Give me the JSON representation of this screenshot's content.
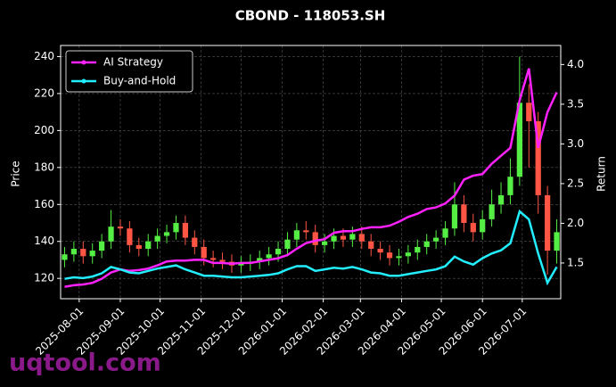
{
  "chart_data": {
    "type": "candlestick",
    "title": "CBOND - 118053.SH",
    "ylabel": "Price",
    "y2label": "Return",
    "watermark": "uqtool.com",
    "x": [
      "2025-07-21",
      "2025-07-28",
      "2025-08-04",
      "2025-08-11",
      "2025-08-18",
      "2025-08-25",
      "2025-09-01",
      "2025-09-08",
      "2025-09-15",
      "2025-09-22",
      "2025-09-29",
      "2025-10-06",
      "2025-10-13",
      "2025-10-20",
      "2025-10-27",
      "2025-11-03",
      "2025-11-10",
      "2025-11-17",
      "2025-11-24",
      "2025-12-01",
      "2025-12-08",
      "2025-12-15",
      "2025-12-22",
      "2025-12-29",
      "2026-01-05",
      "2026-01-12",
      "2026-01-19",
      "2026-01-26",
      "2026-02-02",
      "2026-02-09",
      "2026-02-16",
      "2026-02-23",
      "2026-03-02",
      "2026-03-09",
      "2026-03-16",
      "2026-03-23",
      "2026-03-30",
      "2026-04-06",
      "2026-04-13",
      "2026-04-20",
      "2026-04-27",
      "2026-05-04",
      "2026-05-11",
      "2026-05-18",
      "2026-05-25",
      "2026-06-01",
      "2026-06-08",
      "2026-06-15",
      "2026-06-22",
      "2026-06-29",
      "2026-07-06",
      "2026-07-13",
      "2026-07-20",
      "2026-07-27"
    ],
    "open": [
      130,
      133,
      136,
      132,
      135,
      140,
      148,
      147,
      138,
      136,
      140,
      143,
      145,
      150,
      142,
      137,
      131,
      130,
      129,
      127,
      128,
      129,
      131,
      133,
      136,
      141,
      146,
      145,
      138,
      140,
      143,
      141,
      144,
      140,
      136,
      134,
      131,
      132,
      134,
      137,
      140,
      142,
      147,
      160,
      150,
      145,
      152,
      160,
      165,
      175,
      215,
      205,
      165,
      135
    ],
    "high": [
      137,
      140,
      140,
      139,
      144,
      157,
      152,
      151,
      142,
      144,
      147,
      149,
      154,
      154,
      146,
      141,
      135,
      134,
      133,
      132,
      133,
      135,
      137,
      140,
      145,
      150,
      151,
      149,
      144,
      147,
      147,
      148,
      148,
      144,
      140,
      138,
      136,
      138,
      141,
      144,
      146,
      151,
      172,
      165,
      155,
      157,
      168,
      172,
      185,
      240,
      225,
      210,
      170,
      152
    ],
    "low": [
      126,
      129,
      128,
      128,
      131,
      136,
      143,
      134,
      132,
      132,
      136,
      139,
      141,
      138,
      133,
      127,
      126,
      125,
      123,
      123,
      124,
      125,
      127,
      129,
      132,
      137,
      141,
      134,
      134,
      136,
      137,
      137,
      136,
      132,
      130,
      127,
      127,
      128,
      130,
      133,
      136,
      138,
      143,
      145,
      140,
      141,
      148,
      155,
      160,
      170,
      180,
      155,
      122,
      128
    ],
    "close": [
      133,
      136,
      132,
      135,
      140,
      148,
      147,
      138,
      136,
      140,
      143,
      145,
      150,
      142,
      137,
      131,
      130,
      129,
      127,
      128,
      129,
      131,
      133,
      136,
      141,
      146,
      145,
      138,
      140,
      143,
      141,
      144,
      140,
      136,
      134,
      131,
      132,
      134,
      137,
      140,
      142,
      147,
      160,
      150,
      145,
      152,
      160,
      165,
      175,
      215,
      205,
      165,
      135,
      145
    ],
    "up_color": "#55ee44",
    "down_color": "#ff5544",
    "series": [
      {
        "name": "AI Strategy",
        "color": "#ff22ff",
        "axis": "y2",
        "values": [
          1.2,
          1.22,
          1.23,
          1.25,
          1.3,
          1.38,
          1.42,
          1.4,
          1.41,
          1.43,
          1.47,
          1.52,
          1.53,
          1.53,
          1.54,
          1.54,
          1.5,
          1.5,
          1.49,
          1.5,
          1.5,
          1.52,
          1.54,
          1.56,
          1.6,
          1.68,
          1.75,
          1.78,
          1.8,
          1.88,
          1.9,
          1.9,
          1.93,
          1.95,
          1.95,
          1.97,
          2.02,
          2.08,
          2.12,
          2.18,
          2.2,
          2.25,
          2.35,
          2.55,
          2.6,
          2.62,
          2.75,
          2.85,
          2.95,
          3.55,
          3.95,
          2.95,
          3.4,
          3.65
        ]
      },
      {
        "name": "Buy-and-Hold",
        "color": "#22eeff",
        "axis": "y2",
        "values": [
          1.3,
          1.32,
          1.31,
          1.33,
          1.37,
          1.45,
          1.42,
          1.38,
          1.37,
          1.4,
          1.43,
          1.45,
          1.47,
          1.42,
          1.38,
          1.34,
          1.34,
          1.33,
          1.32,
          1.32,
          1.33,
          1.34,
          1.35,
          1.37,
          1.42,
          1.46,
          1.46,
          1.4,
          1.42,
          1.44,
          1.43,
          1.45,
          1.42,
          1.38,
          1.37,
          1.34,
          1.34,
          1.36,
          1.38,
          1.4,
          1.42,
          1.46,
          1.58,
          1.52,
          1.48,
          1.56,
          1.62,
          1.66,
          1.75,
          2.15,
          2.05,
          1.62,
          1.25,
          1.45
        ]
      }
    ],
    "xlim": [
      "2025-07-18",
      "2026-07-30"
    ],
    "xticks": [
      "2025-08-01",
      "2025-09-01",
      "2025-10-01",
      "2025-11-01",
      "2025-12-01",
      "2026-01-01",
      "2026-02-01",
      "2026-03-01",
      "2026-04-01",
      "2026-05-01",
      "2026-06-01",
      "2026-07-01"
    ],
    "ylim": [
      109,
      246
    ],
    "yticks": [
      120,
      140,
      160,
      180,
      200,
      220,
      240
    ],
    "y2lim": [
      1.05,
      4.24
    ],
    "y2ticks": [
      1.5,
      {
        "value": 2,
        "label": "2.0"
      },
      2.5,
      {
        "value": 3,
        "label": "3.0"
      },
      3.5,
      {
        "value": 4,
        "label": "4.0"
      }
    ],
    "grid": true,
    "legend": "upper left"
  }
}
